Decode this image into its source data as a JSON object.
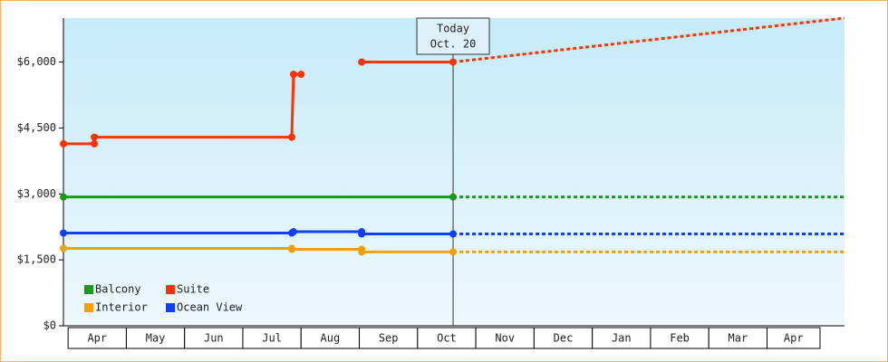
{
  "chart_data": {
    "type": "line",
    "categories": [
      "Apr",
      "May",
      "Jun",
      "Jul",
      "Aug",
      "Sep",
      "Oct",
      "Nov",
      "Dec",
      "Jan",
      "Feb",
      "Mar",
      "Apr"
    ],
    "xlim": [
      -0.08,
      13.33
    ],
    "ylim": [
      0,
      7000
    ],
    "yticks": [
      {
        "value": 0,
        "label": "$0"
      },
      {
        "value": 1500,
        "label": "$1,500"
      },
      {
        "value": 3000,
        "label": "$3,000"
      },
      {
        "value": 4500,
        "label": "$4,500"
      },
      {
        "value": 6000,
        "label": "$6,000"
      }
    ],
    "annotation": {
      "x": 6.61,
      "lines": [
        "Today",
        "Oct. 20"
      ]
    },
    "series": [
      {
        "name": "Balcony",
        "color": "#1a9a1a",
        "x": [
          -0.08,
          6.61
        ],
        "values": [
          2930,
          2930
        ],
        "forecast": {
          "x": [
            6.61,
            13.33
          ],
          "values": [
            2930,
            2930
          ]
        }
      },
      {
        "name": "Suite",
        "color": "#ff3300",
        "x": [
          -0.08,
          0.45,
          0.45,
          3.84,
          3.87,
          4.0,
          4.5,
          5.04,
          6.61
        ],
        "values": [
          4140,
          4140,
          4290,
          4290,
          5720,
          5720,
          null,
          6000,
          6000
        ],
        "forecast": {
          "x": [
            6.61,
            13.33
          ],
          "values": [
            6000,
            7000
          ]
        }
      },
      {
        "name": "Interior",
        "color": "#f5a000",
        "x": [
          -0.08,
          3.84,
          3.84,
          5.04,
          5.04,
          6.61
        ],
        "values": [
          1760,
          1760,
          1740,
          1740,
          1680,
          1680
        ],
        "forecast": {
          "x": [
            6.61,
            13.33
          ],
          "values": [
            1680,
            1680
          ]
        }
      },
      {
        "name": "Ocean View",
        "color": "#1040ff",
        "x": [
          -0.08,
          3.84,
          3.87,
          5.04,
          5.04,
          6.61
        ],
        "values": [
          2110,
          2110,
          2140,
          2140,
          2090,
          2090
        ],
        "forecast": {
          "x": [
            6.61,
            13.33
          ],
          "values": [
            2090,
            2090
          ]
        }
      }
    ]
  }
}
